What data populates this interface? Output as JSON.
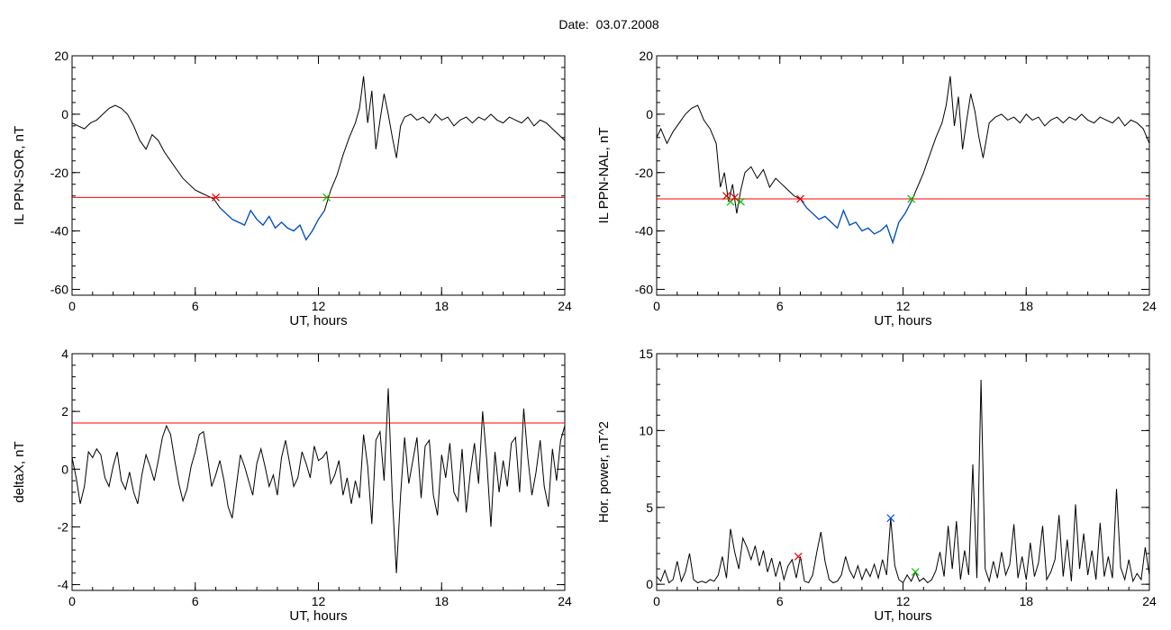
{
  "page": {
    "title": "Date:  03.07.2008"
  },
  "colors": {
    "threshold": "#ff0000",
    "highlight": "#0050c8",
    "trace": "#000000",
    "start_marker": "#e00000",
    "end_marker": "#00c000",
    "peak_marker": "#0050ff"
  },
  "chart_data": [
    {
      "id": "ppn-sor",
      "type": "line",
      "xlabel": "UT, hours",
      "ylabel": "IL PPN-SOR, nT",
      "xlim": [
        0,
        24
      ],
      "ylim": [
        -62,
        20
      ],
      "xticks": [
        0,
        6,
        12,
        18,
        24
      ],
      "yticks": [
        20,
        0,
        -20,
        -40,
        -60
      ],
      "threshold": -28.5,
      "highlight_range": [
        7.0,
        12.4
      ],
      "markers": [
        {
          "x": 7.0,
          "y": -28.5,
          "kind": "start"
        },
        {
          "x": 12.4,
          "y": -28.5,
          "kind": "end"
        }
      ],
      "x": [
        0,
        0.3,
        0.6,
        0.9,
        1.2,
        1.5,
        1.8,
        2.1,
        2.4,
        2.7,
        3.0,
        3.3,
        3.6,
        3.9,
        4.2,
        4.5,
        4.8,
        5.1,
        5.4,
        5.7,
        6.0,
        6.3,
        6.6,
        6.9,
        7.2,
        7.5,
        7.8,
        8.1,
        8.4,
        8.7,
        9.0,
        9.3,
        9.6,
        9.9,
        10.2,
        10.5,
        10.8,
        11.1,
        11.4,
        11.7,
        12.0,
        12.3,
        12.6,
        12.9,
        13.2,
        13.5,
        13.8,
        14.0,
        14.2,
        14.4,
        14.6,
        14.8,
        15.0,
        15.2,
        15.4,
        15.6,
        15.8,
        16.0,
        16.2,
        16.5,
        16.8,
        17.1,
        17.4,
        17.7,
        18.0,
        18.3,
        18.6,
        18.9,
        19.2,
        19.5,
        19.8,
        20.1,
        20.4,
        20.7,
        21.0,
        21.3,
        21.6,
        21.9,
        22.2,
        22.5,
        22.8,
        23.1,
        23.4,
        23.7,
        24.0
      ],
      "y": [
        -3,
        -4,
        -5,
        -3,
        -2,
        0,
        2,
        3,
        2,
        0,
        -4,
        -9,
        -12,
        -7,
        -9,
        -13,
        -16,
        -19,
        -22,
        -24,
        -26,
        -27,
        -28,
        -29,
        -32,
        -34,
        -36,
        -37,
        -38,
        -33,
        -36,
        -38,
        -35,
        -39,
        -37,
        -39,
        -40,
        -38,
        -43,
        -40,
        -36,
        -33,
        -26,
        -21,
        -14,
        -8,
        -3,
        2,
        13,
        -3,
        8,
        -12,
        -2,
        7,
        0,
        -8,
        -15,
        -4,
        -1,
        0,
        -2,
        -1,
        -3,
        0,
        -2,
        -1,
        -4,
        -2,
        -1,
        -3,
        -1,
        -2,
        0,
        -2,
        -3,
        -1,
        -2,
        -3,
        -1,
        -4,
        -2,
        -3,
        -5,
        -7,
        -9
      ]
    },
    {
      "id": "ppn-nal",
      "type": "line",
      "xlabel": "UT, hours",
      "ylabel": "IL PPN-NAL, nT",
      "xlim": [
        0,
        24
      ],
      "ylim": [
        -62,
        20
      ],
      "xticks": [
        0,
        6,
        12,
        18,
        24
      ],
      "yticks": [
        20,
        0,
        -20,
        -40,
        -60
      ],
      "threshold": -29,
      "highlight_range": [
        7.0,
        12.4
      ],
      "markers": [
        {
          "x": 3.4,
          "y": -28,
          "kind": "start"
        },
        {
          "x": 3.6,
          "y": -30,
          "kind": "end"
        },
        {
          "x": 3.8,
          "y": -28.5,
          "kind": "start"
        },
        {
          "x": 4.1,
          "y": -30,
          "kind": "end"
        },
        {
          "x": 7.0,
          "y": -29,
          "kind": "start"
        },
        {
          "x": 12.4,
          "y": -29,
          "kind": "end"
        }
      ],
      "x": [
        0,
        0.2,
        0.5,
        0.8,
        1.1,
        1.4,
        1.7,
        2.0,
        2.3,
        2.6,
        2.9,
        3.1,
        3.3,
        3.5,
        3.7,
        3.9,
        4.1,
        4.3,
        4.6,
        4.9,
        5.2,
        5.5,
        5.8,
        6.1,
        6.4,
        6.7,
        7.0,
        7.3,
        7.6,
        7.9,
        8.2,
        8.5,
        8.8,
        9.1,
        9.4,
        9.7,
        10.0,
        10.3,
        10.6,
        10.9,
        11.2,
        11.5,
        11.8,
        12.1,
        12.4,
        12.7,
        13.0,
        13.3,
        13.6,
        13.9,
        14.1,
        14.3,
        14.5,
        14.7,
        14.9,
        15.1,
        15.3,
        15.5,
        15.7,
        15.9,
        16.2,
        16.5,
        16.8,
        17.1,
        17.4,
        17.7,
        18.0,
        18.3,
        18.6,
        18.9,
        19.2,
        19.5,
        19.8,
        20.1,
        20.4,
        20.7,
        21.0,
        21.3,
        21.6,
        21.9,
        22.2,
        22.5,
        22.8,
        23.1,
        23.4,
        23.7,
        24.0
      ],
      "y": [
        -8,
        -5,
        -10,
        -6,
        -3,
        0,
        2,
        3,
        -2,
        -5,
        -10,
        -25,
        -20,
        -30,
        -24,
        -34,
        -26,
        -20,
        -18,
        -22,
        -19,
        -25,
        -22,
        -24,
        -26,
        -28,
        -29,
        -32,
        -34,
        -36,
        -35,
        -37,
        -39,
        -33,
        -38,
        -37,
        -40,
        -39,
        -41,
        -40,
        -38,
        -44,
        -37,
        -34,
        -30,
        -25,
        -20,
        -14,
        -8,
        -3,
        3,
        13,
        -4,
        6,
        -12,
        -2,
        7,
        1,
        -8,
        -15,
        -3,
        -1,
        0,
        -2,
        -1,
        -3,
        0,
        -2,
        -1,
        -4,
        -2,
        -1,
        -3,
        -1,
        -2,
        0,
        -2,
        -3,
        -1,
        -2,
        -3,
        -1,
        -4,
        -2,
        -3,
        -5,
        -10
      ]
    },
    {
      "id": "delta-x",
      "type": "line",
      "xlabel": "UT, hours",
      "ylabel": "deltaX, nT",
      "xlim": [
        0,
        24
      ],
      "ylim": [
        -4.2,
        4
      ],
      "xticks": [
        0,
        6,
        12,
        18,
        24
      ],
      "yticks": [
        4,
        2,
        0,
        -2,
        -4
      ],
      "threshold": 1.6,
      "x": [
        0,
        0.2,
        0.4,
        0.6,
        0.8,
        1.0,
        1.2,
        1.4,
        1.6,
        1.8,
        2.0,
        2.2,
        2.4,
        2.6,
        2.8,
        3.0,
        3.2,
        3.4,
        3.6,
        3.8,
        4.0,
        4.2,
        4.4,
        4.6,
        4.8,
        5.0,
        5.2,
        5.4,
        5.6,
        5.8,
        6.0,
        6.2,
        6.4,
        6.6,
        6.8,
        7.0,
        7.2,
        7.4,
        7.6,
        7.8,
        8.0,
        8.2,
        8.4,
        8.6,
        8.8,
        9.0,
        9.2,
        9.4,
        9.6,
        9.8,
        10.0,
        10.2,
        10.4,
        10.6,
        10.8,
        11.0,
        11.2,
        11.4,
        11.6,
        11.8,
        12.0,
        12.2,
        12.4,
        12.6,
        12.8,
        13.0,
        13.2,
        13.4,
        13.6,
        13.8,
        14.0,
        14.2,
        14.4,
        14.6,
        14.8,
        15.0,
        15.2,
        15.4,
        15.6,
        15.8,
        16.0,
        16.2,
        16.4,
        16.6,
        16.8,
        17.0,
        17.2,
        17.4,
        17.6,
        17.8,
        18.0,
        18.2,
        18.4,
        18.6,
        18.8,
        19.0,
        19.2,
        19.4,
        19.6,
        19.8,
        20.0,
        20.2,
        20.4,
        20.6,
        20.8,
        21.0,
        21.2,
        21.4,
        21.6,
        21.8,
        22.0,
        22.2,
        22.4,
        22.6,
        22.8,
        23.0,
        23.2,
        23.4,
        23.6,
        23.8,
        24.0
      ],
      "y": [
        0.4,
        -0.3,
        -1.2,
        -0.6,
        0.6,
        0.4,
        0.7,
        0.5,
        -0.3,
        -0.6,
        0.1,
        0.6,
        -0.4,
        -0.7,
        -0.1,
        -0.8,
        -1.2,
        -0.2,
        0.5,
        0.1,
        -0.4,
        0.3,
        1.1,
        1.5,
        1.2,
        0.3,
        -0.5,
        -1.1,
        -0.7,
        0.1,
        0.6,
        1.2,
        1.3,
        0.4,
        -0.6,
        -0.2,
        0.3,
        -0.4,
        -1.3,
        -1.7,
        -0.6,
        0.5,
        0.1,
        -0.4,
        -0.9,
        0.2,
        0.7,
        0.1,
        -0.6,
        -0.2,
        -0.9,
        0.4,
        1.0,
        0.2,
        -0.6,
        -0.3,
        0.6,
        0.2,
        -0.3,
        0.8,
        0.3,
        0.4,
        0.6,
        -0.5,
        -0.2,
        0.3,
        -0.9,
        -0.3,
        -1.2,
        -0.4,
        -1.0,
        1.2,
        0.1,
        -1.9,
        1.0,
        1.3,
        -0.4,
        2.8,
        -1.0,
        -3.6,
        -0.9,
        1.1,
        -0.5,
        0.3,
        1.1,
        -1.0,
        0.8,
        1.0,
        -0.9,
        -1.6,
        0.5,
        -0.3,
        0.9,
        -0.8,
        -1.1,
        0.7,
        -1.5,
        -0.1,
        0.9,
        -0.5,
        2.0,
        0.3,
        -2.0,
        0.6,
        -0.8,
        0.3,
        -0.6,
        0.9,
        1.1,
        -0.8,
        2.1,
        0.4,
        -0.9,
        -0.1,
        1.0,
        -0.6,
        -1.3,
        0.7,
        -0.4,
        1.0,
        1.5
      ]
    },
    {
      "id": "hor-power",
      "type": "line",
      "xlabel": "UT, hours",
      "ylabel": "Hor. power, nT^2",
      "xlim": [
        0,
        24
      ],
      "ylim": [
        -0.4,
        15
      ],
      "xticks": [
        0,
        6,
        12,
        18,
        24
      ],
      "yticks": [
        15,
        10,
        5,
        0
      ],
      "markers": [
        {
          "x": 6.9,
          "y": 1.8,
          "kind": "start"
        },
        {
          "x": 11.4,
          "y": 4.3,
          "kind": "peak"
        },
        {
          "x": 12.6,
          "y": 0.8,
          "kind": "end"
        }
      ],
      "x": [
        0,
        0.2,
        0.4,
        0.6,
        0.8,
        1.0,
        1.2,
        1.4,
        1.6,
        1.8,
        2.0,
        2.2,
        2.4,
        2.6,
        2.8,
        3.0,
        3.2,
        3.4,
        3.6,
        3.8,
        4.0,
        4.2,
        4.4,
        4.6,
        4.8,
        5.0,
        5.2,
        5.4,
        5.6,
        5.8,
        6.0,
        6.2,
        6.4,
        6.6,
        6.8,
        7.0,
        7.2,
        7.4,
        7.6,
        7.8,
        8.0,
        8.2,
        8.4,
        8.6,
        8.8,
        9.0,
        9.2,
        9.4,
        9.6,
        9.8,
        10.0,
        10.2,
        10.4,
        10.6,
        10.8,
        11.0,
        11.2,
        11.4,
        11.6,
        11.8,
        12.0,
        12.2,
        12.4,
        12.6,
        12.8,
        13.0,
        13.2,
        13.4,
        13.6,
        13.8,
        14.0,
        14.2,
        14.4,
        14.6,
        14.8,
        15.0,
        15.2,
        15.4,
        15.6,
        15.8,
        16.0,
        16.2,
        16.4,
        16.6,
        16.8,
        17.0,
        17.2,
        17.4,
        17.6,
        17.8,
        18.0,
        18.2,
        18.4,
        18.6,
        18.8,
        19.0,
        19.2,
        19.4,
        19.6,
        19.8,
        20.0,
        20.2,
        20.4,
        20.6,
        20.8,
        21.0,
        21.2,
        21.4,
        21.6,
        21.8,
        22.0,
        22.2,
        22.4,
        22.6,
        22.8,
        23.0,
        23.2,
        23.4,
        23.6,
        23.8,
        24.0
      ],
      "y": [
        0.5,
        0.2,
        0.9,
        0.1,
        0.3,
        1.5,
        0.2,
        0.8,
        2.0,
        0.3,
        0.1,
        0.2,
        0.1,
        0.3,
        0.2,
        0.6,
        1.8,
        0.4,
        3.6,
        2.1,
        1.0,
        3.0,
        2.4,
        1.6,
        2.5,
        1.2,
        2.2,
        0.8,
        1.7,
        0.5,
        1.5,
        0.3,
        1.2,
        1.6,
        0.4,
        1.8,
        0.2,
        0.1,
        0.6,
        2.1,
        3.4,
        1.5,
        0.3,
        0.1,
        0.2,
        0.6,
        1.8,
        0.9,
        0.4,
        1.2,
        0.3,
        1.0,
        0.5,
        1.3,
        0.4,
        1.6,
        0.6,
        4.3,
        1.2,
        0.3,
        0.1,
        0.6,
        0.2,
        0.8,
        0.2,
        0.4,
        0.1,
        0.3,
        0.9,
        2.1,
        0.5,
        3.8,
        1.0,
        4.1,
        0.3,
        2.2,
        0.6,
        7.8,
        0.4,
        13.3,
        1.0,
        0.2,
        1.5,
        0.4,
        2.1,
        0.6,
        1.3,
        3.9,
        0.4,
        1.8,
        0.3,
        2.7,
        0.5,
        1.4,
        3.8,
        0.3,
        0.8,
        1.6,
        4.5,
        0.5,
        2.9,
        0.2,
        5.2,
        1.0,
        3.3,
        0.6,
        2.2,
        0.3,
        4.0,
        0.5,
        1.8,
        0.4,
        6.2,
        1.1,
        0.3,
        1.6,
        0.2,
        0.7,
        0.3,
        2.4,
        0.6
      ]
    }
  ]
}
